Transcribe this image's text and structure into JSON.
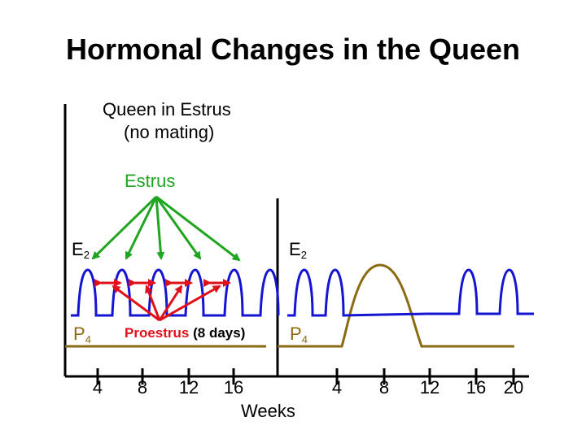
{
  "title": "Hormonal Changes in the Queen",
  "subtitle_line1": "Queen in Estrus",
  "subtitle_line2": "(no mating)",
  "estrus_label": "Estrus",
  "e2_left": {
    "main": "E",
    "sub": "2"
  },
  "e2_right": {
    "main": "E",
    "sub": "2"
  },
  "p4_left": {
    "main": "P",
    "sub": "4"
  },
  "p4_right": {
    "main": "P",
    "sub": "4"
  },
  "proestrus_label": "Proestrus",
  "proestrus_duration": "(8 days)",
  "xaxis_label": "Weeks",
  "left_ticks": [
    "4",
    "8",
    "12",
    "16"
  ],
  "right_ticks": [
    "4",
    "8",
    "12",
    "16",
    "20"
  ],
  "colors": {
    "e2_curve": "#1414d2",
    "p4_curve": "#8a6a13",
    "estrus_arrows": "#1fa51f",
    "proestrus_arrows": "#e0101a",
    "axis": "#000000"
  }
}
